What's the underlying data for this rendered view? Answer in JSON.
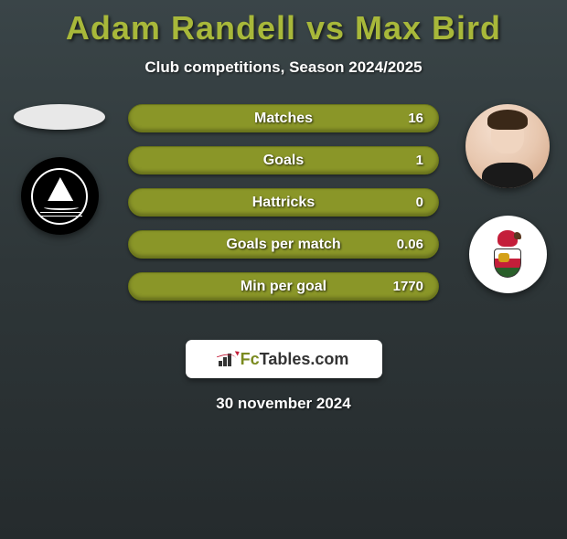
{
  "title": "Adam Randell vs Max Bird",
  "subtitle": "Club competitions, Season 2024/2025",
  "colors": {
    "accent": "#a8b83a",
    "bar_fill": "#8a9628",
    "background_top": "#3a4548",
    "background_bottom": "#252b2d",
    "text": "#ffffff"
  },
  "left_player": {
    "name": "Adam Randell",
    "club": "Plymouth Argyle",
    "club_badge_bg": "#000000"
  },
  "right_player": {
    "name": "Max Bird",
    "club": "Bristol City",
    "club_badge_bg": "#ffffff"
  },
  "stats": [
    {
      "label": "Matches",
      "value": "16"
    },
    {
      "label": "Goals",
      "value": "1"
    },
    {
      "label": "Hattricks",
      "value": "0"
    },
    {
      "label": "Goals per match",
      "value": "0.06"
    },
    {
      "label": "Min per goal",
      "value": "1770"
    }
  ],
  "footer": {
    "brand_prefix": "Fc",
    "brand_suffix": "Tables.com"
  },
  "date": "30 november 2024"
}
